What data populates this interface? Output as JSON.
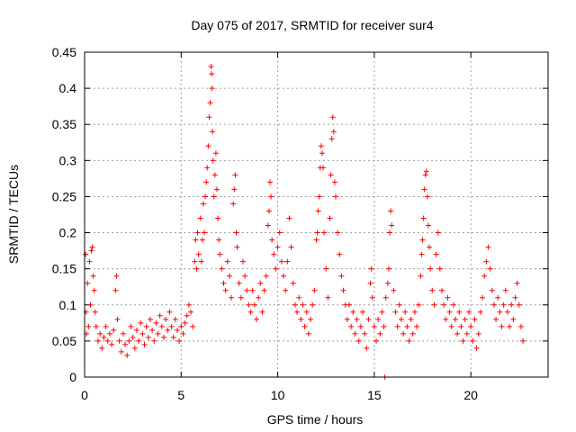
{
  "chart_data": {
    "type": "scatter",
    "title": "Day 075 of 2017, SRMTID for receiver sur4",
    "xlabel": "GPS time / hours",
    "ylabel": "SRMTID / TECUs",
    "xlim": [
      0,
      24
    ],
    "ylim": [
      0,
      0.45
    ],
    "x_ticks": [
      0,
      5,
      10,
      15,
      20
    ],
    "x_tick_labels": [
      "0",
      "5",
      "10",
      "15",
      "20"
    ],
    "y_ticks": [
      0,
      0.05,
      0.1,
      0.15,
      0.2,
      0.25,
      0.3,
      0.35,
      0.4,
      0.45
    ],
    "y_tick_labels": [
      "0",
      "0.05",
      "0.1",
      "0.15",
      "0.2",
      "0.25",
      "0.3",
      "0.35",
      "0.4",
      "0.45"
    ],
    "grid": true,
    "marker": "plus",
    "color": "#ff0000",
    "series": [
      {
        "name": "sur4",
        "points": [
          [
            0.05,
            0.17
          ],
          [
            0.08,
            0.09
          ],
          [
            0.1,
            0.06
          ],
          [
            0.15,
            0.13
          ],
          [
            0.2,
            0.07
          ],
          [
            0.25,
            0.16
          ],
          [
            0.3,
            0.1
          ],
          [
            0.35,
            0.175
          ],
          [
            0.4,
            0.18
          ],
          [
            0.45,
            0.14
          ],
          [
            0.5,
            0.12
          ],
          [
            0.55,
            0.09
          ],
          [
            0.6,
            0.07
          ],
          [
            0.7,
            0.05
          ],
          [
            0.8,
            0.06
          ],
          [
            0.9,
            0.04
          ],
          [
            1.0,
            0.055
          ],
          [
            1.1,
            0.07
          ],
          [
            1.2,
            0.05
          ],
          [
            1.3,
            0.06
          ],
          [
            1.4,
            0.045
          ],
          [
            1.5,
            0.065
          ],
          [
            1.6,
            0.12
          ],
          [
            1.65,
            0.14
          ],
          [
            1.7,
            0.08
          ],
          [
            1.8,
            0.05
          ],
          [
            1.9,
            0.035
          ],
          [
            2.0,
            0.06
          ],
          [
            2.1,
            0.045
          ],
          [
            2.2,
            0.03
          ],
          [
            2.3,
            0.05
          ],
          [
            2.4,
            0.07
          ],
          [
            2.5,
            0.055
          ],
          [
            2.6,
            0.04
          ],
          [
            2.7,
            0.065
          ],
          [
            2.8,
            0.05
          ],
          [
            2.9,
            0.075
          ],
          [
            3.0,
            0.06
          ],
          [
            3.1,
            0.045
          ],
          [
            3.2,
            0.07
          ],
          [
            3.3,
            0.055
          ],
          [
            3.4,
            0.08
          ],
          [
            3.5,
            0.065
          ],
          [
            3.6,
            0.05
          ],
          [
            3.7,
            0.075
          ],
          [
            3.8,
            0.06
          ],
          [
            3.9,
            0.085
          ],
          [
            4.0,
            0.07
          ],
          [
            4.1,
            0.055
          ],
          [
            4.2,
            0.08
          ],
          [
            4.3,
            0.065
          ],
          [
            4.4,
            0.09
          ],
          [
            4.5,
            0.07
          ],
          [
            4.6,
            0.055
          ],
          [
            4.7,
            0.08
          ],
          [
            4.8,
            0.065
          ],
          [
            4.9,
            0.05
          ],
          [
            5.0,
            0.07
          ],
          [
            5.1,
            0.06
          ],
          [
            5.2,
            0.075
          ],
          [
            5.3,
            0.085
          ],
          [
            5.4,
            0.1
          ],
          [
            5.5,
            0.09
          ],
          [
            5.6,
            0.07
          ],
          [
            5.7,
            0.16
          ],
          [
            5.75,
            0.19
          ],
          [
            5.8,
            0.15
          ],
          [
            5.85,
            0.2
          ],
          [
            5.9,
            0.17
          ],
          [
            6.0,
            0.22
          ],
          [
            6.05,
            0.16
          ],
          [
            6.1,
            0.19
          ],
          [
            6.15,
            0.24
          ],
          [
            6.2,
            0.2
          ],
          [
            6.25,
            0.25
          ],
          [
            6.3,
            0.27
          ],
          [
            6.35,
            0.29
          ],
          [
            6.4,
            0.32
          ],
          [
            6.45,
            0.36
          ],
          [
            6.5,
            0.38
          ],
          [
            6.55,
            0.43
          ],
          [
            6.58,
            0.42
          ],
          [
            6.6,
            0.4
          ],
          [
            6.62,
            0.34
          ],
          [
            6.65,
            0.3
          ],
          [
            6.7,
            0.25
          ],
          [
            6.75,
            0.28
          ],
          [
            6.8,
            0.31
          ],
          [
            6.85,
            0.26
          ],
          [
            6.9,
            0.22
          ],
          [
            6.95,
            0.19
          ],
          [
            7.0,
            0.17
          ],
          [
            7.1,
            0.15
          ],
          [
            7.2,
            0.13
          ],
          [
            7.3,
            0.12
          ],
          [
            7.4,
            0.16
          ],
          [
            7.5,
            0.14
          ],
          [
            7.6,
            0.11
          ],
          [
            7.7,
            0.24
          ],
          [
            7.75,
            0.26
          ],
          [
            7.8,
            0.28
          ],
          [
            7.85,
            0.2
          ],
          [
            7.9,
            0.18
          ],
          [
            8.0,
            0.13
          ],
          [
            8.1,
            0.11
          ],
          [
            8.2,
            0.16
          ],
          [
            8.3,
            0.14
          ],
          [
            8.4,
            0.12
          ],
          [
            8.5,
            0.1
          ],
          [
            8.6,
            0.09
          ],
          [
            8.7,
            0.12
          ],
          [
            8.8,
            0.1
          ],
          [
            8.9,
            0.08
          ],
          [
            9.0,
            0.11
          ],
          [
            9.1,
            0.13
          ],
          [
            9.2,
            0.09
          ],
          [
            9.3,
            0.12
          ],
          [
            9.4,
            0.14
          ],
          [
            9.5,
            0.21
          ],
          [
            9.55,
            0.23
          ],
          [
            9.6,
            0.27
          ],
          [
            9.65,
            0.25
          ],
          [
            9.7,
            0.19
          ],
          [
            9.8,
            0.17
          ],
          [
            9.9,
            0.15
          ],
          [
            10.0,
            0.18
          ],
          [
            10.1,
            0.2
          ],
          [
            10.2,
            0.16
          ],
          [
            10.3,
            0.14
          ],
          [
            10.4,
            0.12
          ],
          [
            10.5,
            0.16
          ],
          [
            10.6,
            0.22
          ],
          [
            10.7,
            0.18
          ],
          [
            10.8,
            0.13
          ],
          [
            10.9,
            0.1
          ],
          [
            11.0,
            0.09
          ],
          [
            11.1,
            0.11
          ],
          [
            11.2,
            0.08
          ],
          [
            11.3,
            0.1
          ],
          [
            11.4,
            0.07
          ],
          [
            11.5,
            0.09
          ],
          [
            11.6,
            0.06
          ],
          [
            11.7,
            0.08
          ],
          [
            11.8,
            0.1
          ],
          [
            11.9,
            0.12
          ],
          [
            12.0,
            0.19
          ],
          [
            12.05,
            0.2
          ],
          [
            12.1,
            0.23
          ],
          [
            12.15,
            0.25
          ],
          [
            12.2,
            0.29
          ],
          [
            12.25,
            0.32
          ],
          [
            12.3,
            0.31
          ],
          [
            12.35,
            0.29
          ],
          [
            12.4,
            0.2
          ],
          [
            12.5,
            0.15
          ],
          [
            12.6,
            0.11
          ],
          [
            12.7,
            0.22
          ],
          [
            12.75,
            0.28
          ],
          [
            12.8,
            0.33
          ],
          [
            12.85,
            0.36
          ],
          [
            12.9,
            0.34
          ],
          [
            12.95,
            0.27
          ],
          [
            13.0,
            0.25
          ],
          [
            13.1,
            0.2
          ],
          [
            13.2,
            0.17
          ],
          [
            13.3,
            0.14
          ],
          [
            13.4,
            0.12
          ],
          [
            13.5,
            0.1
          ],
          [
            13.6,
            0.08
          ],
          [
            13.7,
            0.1
          ],
          [
            13.8,
            0.07
          ],
          [
            13.9,
            0.09
          ],
          [
            14.0,
            0.06
          ],
          [
            14.1,
            0.08
          ],
          [
            14.2,
            0.05
          ],
          [
            14.3,
            0.07
          ],
          [
            14.4,
            0.09
          ],
          [
            14.5,
            0.06
          ],
          [
            14.6,
            0.04
          ],
          [
            14.7,
            0.08
          ],
          [
            14.8,
            0.13
          ],
          [
            14.85,
            0.15
          ],
          [
            14.9,
            0.11
          ],
          [
            15.0,
            0.07
          ],
          [
            15.1,
            0.05
          ],
          [
            15.2,
            0.08
          ],
          [
            15.3,
            0.06
          ],
          [
            15.4,
            0.09
          ],
          [
            15.5,
            0.07
          ],
          [
            15.55,
            0.0
          ],
          [
            15.6,
            0.11
          ],
          [
            15.7,
            0.13
          ],
          [
            15.75,
            0.15
          ],
          [
            15.8,
            0.2
          ],
          [
            15.85,
            0.23
          ],
          [
            15.9,
            0.21
          ],
          [
            16.0,
            0.12
          ],
          [
            16.1,
            0.09
          ],
          [
            16.2,
            0.07
          ],
          [
            16.3,
            0.1
          ],
          [
            16.4,
            0.08
          ],
          [
            16.5,
            0.06
          ],
          [
            16.6,
            0.09
          ],
          [
            16.7,
            0.07
          ],
          [
            16.8,
            0.05
          ],
          [
            16.9,
            0.08
          ],
          [
            17.0,
            0.06
          ],
          [
            17.1,
            0.09
          ],
          [
            17.2,
            0.07
          ],
          [
            17.3,
            0.1
          ],
          [
            17.4,
            0.14
          ],
          [
            17.45,
            0.17
          ],
          [
            17.5,
            0.19
          ],
          [
            17.55,
            0.22
          ],
          [
            17.6,
            0.26
          ],
          [
            17.65,
            0.28
          ],
          [
            17.7,
            0.285
          ],
          [
            17.75,
            0.25
          ],
          [
            17.8,
            0.21
          ],
          [
            17.85,
            0.18
          ],
          [
            17.9,
            0.15
          ],
          [
            18.0,
            0.12
          ],
          [
            18.1,
            0.1
          ],
          [
            18.2,
            0.17
          ],
          [
            18.3,
            0.2
          ],
          [
            18.4,
            0.15
          ],
          [
            18.5,
            0.12
          ],
          [
            18.6,
            0.1
          ],
          [
            18.7,
            0.08
          ],
          [
            18.8,
            0.11
          ],
          [
            18.9,
            0.09
          ],
          [
            19.0,
            0.07
          ],
          [
            19.1,
            0.1
          ],
          [
            19.2,
            0.08
          ],
          [
            19.3,
            0.06
          ],
          [
            19.4,
            0.09
          ],
          [
            19.5,
            0.07
          ],
          [
            19.6,
            0.05
          ],
          [
            19.7,
            0.08
          ],
          [
            19.8,
            0.06
          ],
          [
            19.9,
            0.09
          ],
          [
            20.0,
            0.07
          ],
          [
            20.1,
            0.05
          ],
          [
            20.2,
            0.08
          ],
          [
            20.3,
            0.04
          ],
          [
            20.4,
            0.06
          ],
          [
            20.5,
            0.09
          ],
          [
            20.6,
            0.11
          ],
          [
            20.7,
            0.14
          ],
          [
            20.8,
            0.16
          ],
          [
            20.9,
            0.18
          ],
          [
            21.0,
            0.15
          ],
          [
            21.1,
            0.12
          ],
          [
            21.2,
            0.1
          ],
          [
            21.3,
            0.08
          ],
          [
            21.4,
            0.11
          ],
          [
            21.5,
            0.09
          ],
          [
            21.6,
            0.07
          ],
          [
            21.7,
            0.1
          ],
          [
            21.8,
            0.12
          ],
          [
            21.9,
            0.09
          ],
          [
            22.0,
            0.07
          ],
          [
            22.1,
            0.1
          ],
          [
            22.2,
            0.08
          ],
          [
            22.3,
            0.11
          ],
          [
            22.4,
            0.13
          ],
          [
            22.5,
            0.1
          ],
          [
            22.6,
            0.07
          ],
          [
            22.7,
            0.05
          ]
        ]
      }
    ]
  }
}
